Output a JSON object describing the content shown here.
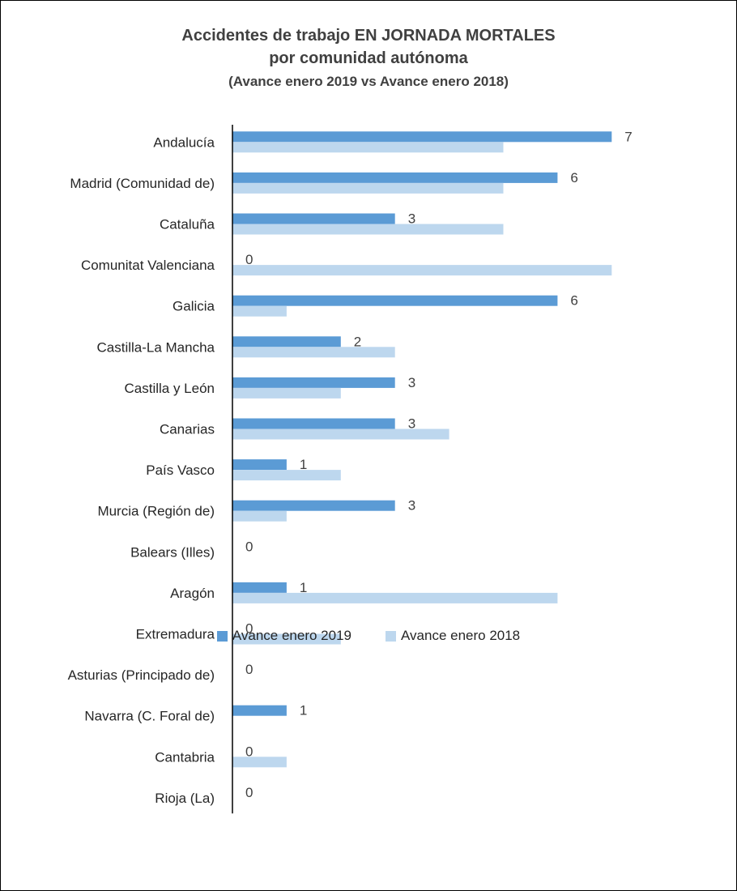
{
  "chart_data": {
    "type": "bar",
    "orientation": "horizontal",
    "title": "Accidentes de trabajo EN JORNADA MORTALES",
    "title_line2": "por comunidad autónoma",
    "subtitle": "(Avance enero 2019 vs Avance enero 2018)",
    "categories": [
      "Andalucía",
      "Madrid (Comunidad de)",
      "Cataluña",
      "Comunitat Valenciana",
      "Galicia",
      "Castilla-La Mancha",
      "Castilla y León",
      "Canarias",
      "País Vasco",
      "Murcia (Región de)",
      "Balears (Illes)",
      "Aragón",
      "Extremadura",
      "Asturias (Principado de)",
      "Navarra (C. Foral de)",
      "Cantabria",
      "Rioja (La)"
    ],
    "series": [
      {
        "name": "Avance enero 2019",
        "color": "#5b9bd5",
        "values": [
          7,
          6,
          3,
          0,
          6,
          2,
          3,
          3,
          1,
          3,
          0,
          1,
          0,
          0,
          1,
          0,
          0
        ]
      },
      {
        "name": "Avance enero 2018",
        "color": "#bdd7ee",
        "values": [
          5,
          5,
          5,
          7,
          1,
          3,
          2,
          4,
          2,
          1,
          0,
          6,
          2,
          0,
          0,
          1,
          0
        ]
      }
    ],
    "data_labels_series": "Avance enero 2019",
    "xlim": [
      0,
      7
    ],
    "grid": false,
    "legend_position": "bottom"
  }
}
